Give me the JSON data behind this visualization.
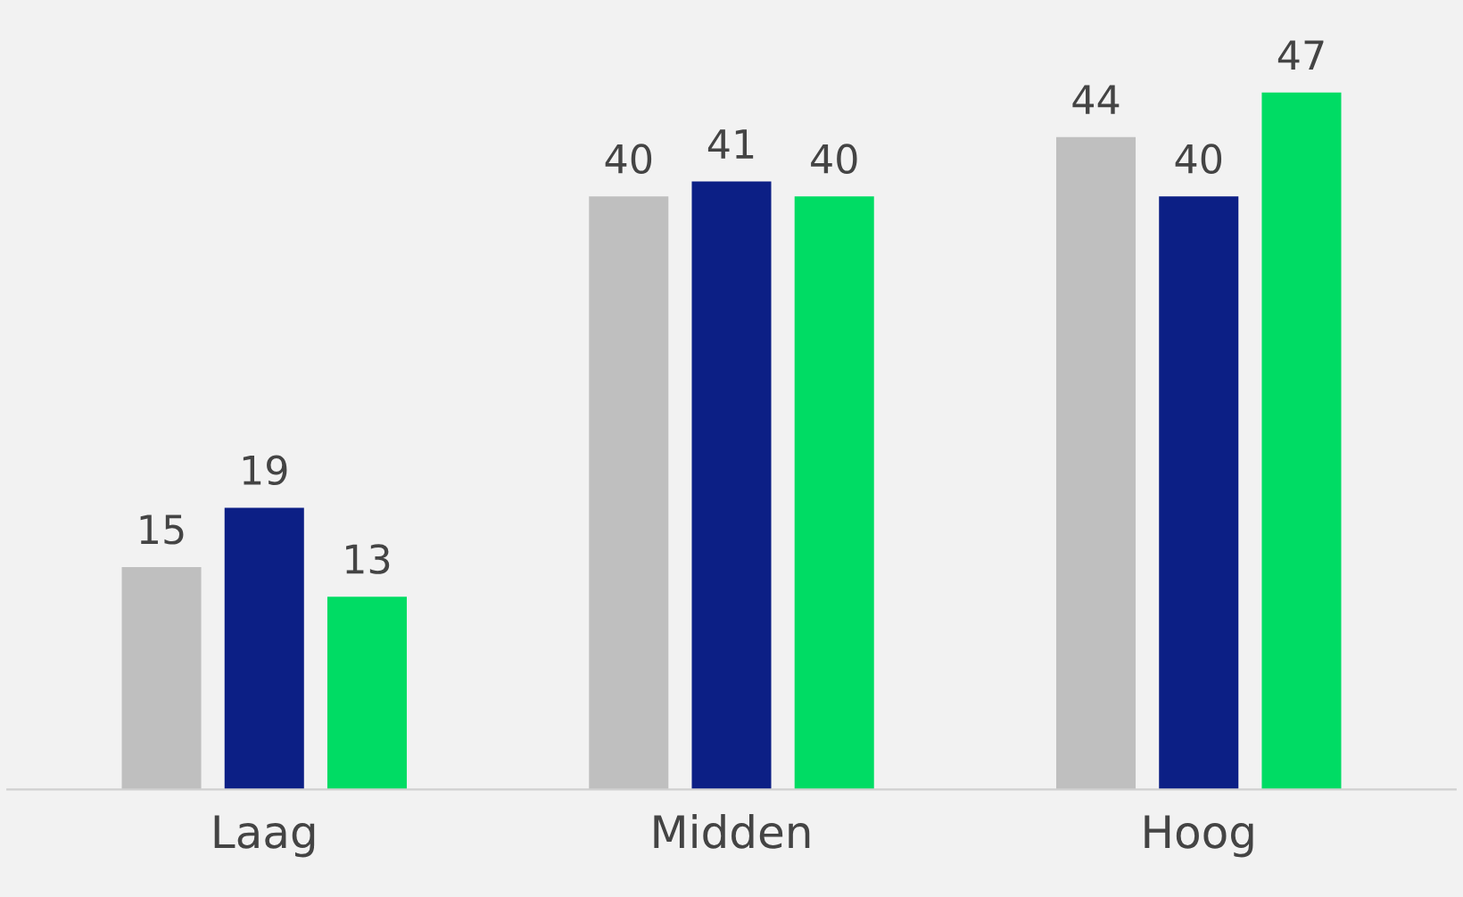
{
  "chart_data": {
    "type": "bar",
    "categories": [
      "Laag",
      "Midden",
      "Hoog"
    ],
    "series": [
      {
        "color": "#bfbfbf",
        "values": [
          15,
          40,
          44
        ]
      },
      {
        "color": "#0c1f85",
        "values": [
          19,
          41,
          40
        ]
      },
      {
        "color": "#00dc64",
        "values": [
          13,
          40,
          47
        ]
      }
    ],
    "data_labels": true,
    "grid": false,
    "legend": false
  }
}
